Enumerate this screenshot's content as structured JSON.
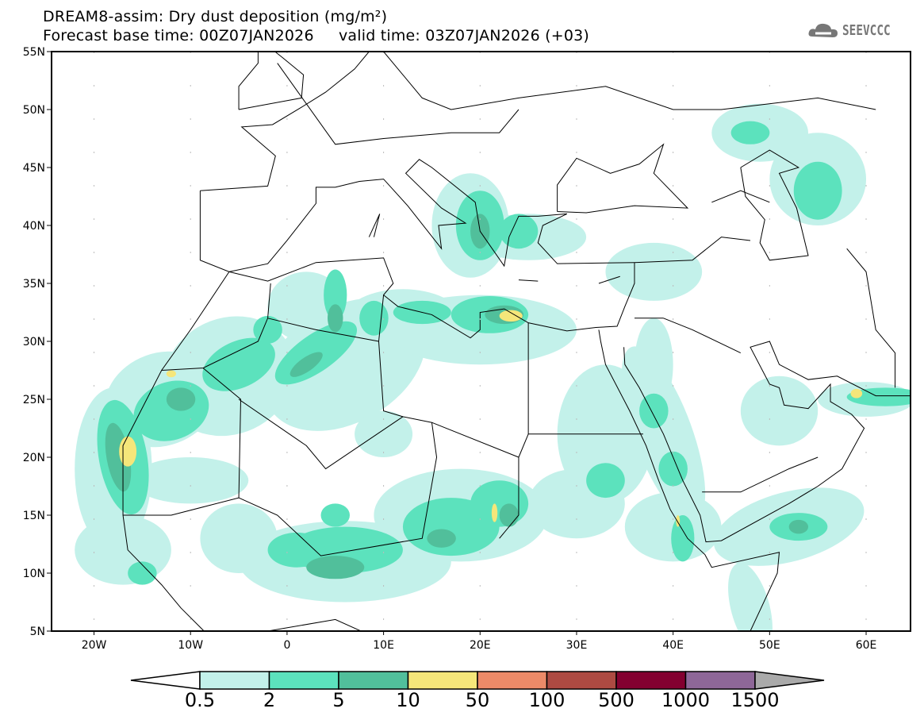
{
  "header": {
    "title": "DREAM8-assim: Dry dust deposition (mg/m²)",
    "base_time_label": "Forecast base time: 00Z07JAN2026",
    "valid_time_label": "valid time: 03Z07JAN2026 (+03)",
    "logo_text": "SEEVCCC"
  },
  "map": {
    "lat_ticks": [
      "55N",
      "50N",
      "45N",
      "40N",
      "35N",
      "30N",
      "25N",
      "20N",
      "15N",
      "10N",
      "5N"
    ],
    "lon_ticks": [
      "20W",
      "10W",
      "0",
      "10E",
      "20E",
      "30E",
      "40E",
      "50E",
      "60E"
    ],
    "lon_range": [
      -24.4,
      64.6
    ],
    "lat_range": [
      5,
      55
    ]
  },
  "colorbar": {
    "levels": [
      "0.5",
      "2",
      "5",
      "10",
      "50",
      "100",
      "500",
      "1000",
      "1500"
    ],
    "colors": [
      "#c3f1ea",
      "#5ce2bd",
      "#51bf9b",
      "#f5e67a",
      "#ec8a68",
      "#ad4a42",
      "#830030",
      "#8e6798"
    ],
    "under_color": "#ffffff",
    "over_color": "#aaaaaa"
  }
}
